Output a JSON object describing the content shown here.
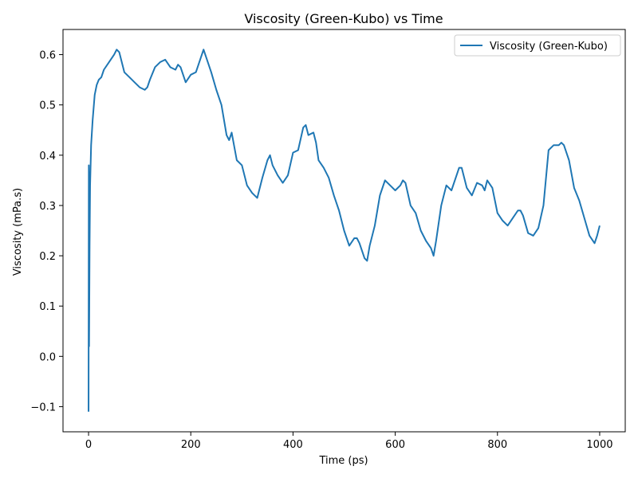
{
  "chart_data": {
    "type": "line",
    "title": "Viscosity (Green-Kubo) vs Time",
    "xlabel": "Time (ps)",
    "ylabel": "Viscosity (mPa.s)",
    "xlim": [
      -50,
      1050
    ],
    "ylim": [
      -0.15,
      0.65
    ],
    "x_ticks": [
      0,
      200,
      400,
      600,
      800,
      1000
    ],
    "x_tick_labels": [
      "0",
      "200",
      "400",
      "600",
      "800",
      "1000"
    ],
    "y_ticks": [
      -0.1,
      0.0,
      0.1,
      0.2,
      0.3,
      0.4,
      0.5,
      0.6
    ],
    "y_tick_labels": [
      "−0.1",
      "0.0",
      "0.1",
      "0.2",
      "0.3",
      "0.4",
      "0.5",
      "0.6"
    ],
    "grid": false,
    "legend_position": "top-right",
    "series": [
      {
        "name": "Viscosity (Green-Kubo)",
        "color": "#1f77b4",
        "x": [
          0,
          0.5,
          1,
          2,
          3,
          5,
          8,
          12,
          16,
          20,
          25,
          30,
          40,
          50,
          55,
          60,
          70,
          80,
          90,
          100,
          110,
          115,
          120,
          130,
          140,
          150,
          160,
          170,
          175,
          180,
          190,
          200,
          210,
          220,
          225,
          230,
          240,
          250,
          260,
          270,
          275,
          280,
          290,
          300,
          310,
          320,
          330,
          340,
          350,
          355,
          360,
          370,
          380,
          390,
          400,
          410,
          420,
          425,
          430,
          440,
          445,
          450,
          460,
          470,
          480,
          490,
          500,
          510,
          520,
          525,
          530,
          540,
          545,
          550,
          560,
          570,
          580,
          590,
          600,
          610,
          615,
          620,
          630,
          640,
          650,
          660,
          670,
          675,
          680,
          690,
          700,
          710,
          720,
          725,
          730,
          740,
          750,
          760,
          770,
          775,
          780,
          790,
          800,
          810,
          820,
          830,
          840,
          845,
          850,
          860,
          870,
          880,
          890,
          900,
          910,
          920,
          925,
          930,
          940,
          950,
          960,
          970,
          980,
          990,
          995,
          1000
        ],
        "y": [
          -0.11,
          0.38,
          0.02,
          0.22,
          0.34,
          0.42,
          0.47,
          0.52,
          0.54,
          0.55,
          0.555,
          0.57,
          0.585,
          0.6,
          0.61,
          0.605,
          0.565,
          0.555,
          0.545,
          0.535,
          0.53,
          0.535,
          0.55,
          0.575,
          0.585,
          0.59,
          0.575,
          0.57,
          0.58,
          0.575,
          0.545,
          0.56,
          0.565,
          0.595,
          0.61,
          0.595,
          0.565,
          0.53,
          0.5,
          0.44,
          0.43,
          0.445,
          0.39,
          0.38,
          0.34,
          0.325,
          0.315,
          0.355,
          0.39,
          0.4,
          0.38,
          0.36,
          0.345,
          0.36,
          0.405,
          0.41,
          0.455,
          0.46,
          0.44,
          0.445,
          0.425,
          0.39,
          0.375,
          0.355,
          0.32,
          0.29,
          0.25,
          0.22,
          0.235,
          0.235,
          0.225,
          0.195,
          0.19,
          0.22,
          0.26,
          0.32,
          0.35,
          0.34,
          0.33,
          0.34,
          0.35,
          0.345,
          0.3,
          0.285,
          0.25,
          0.23,
          0.215,
          0.2,
          0.23,
          0.3,
          0.34,
          0.33,
          0.36,
          0.375,
          0.375,
          0.335,
          0.32,
          0.345,
          0.34,
          0.33,
          0.35,
          0.335,
          0.285,
          0.27,
          0.26,
          0.275,
          0.29,
          0.29,
          0.28,
          0.245,
          0.24,
          0.255,
          0.3,
          0.41,
          0.42,
          0.42,
          0.425,
          0.42,
          0.39,
          0.335,
          0.31,
          0.275,
          0.24,
          0.225,
          0.24,
          0.26
        ]
      }
    ]
  }
}
